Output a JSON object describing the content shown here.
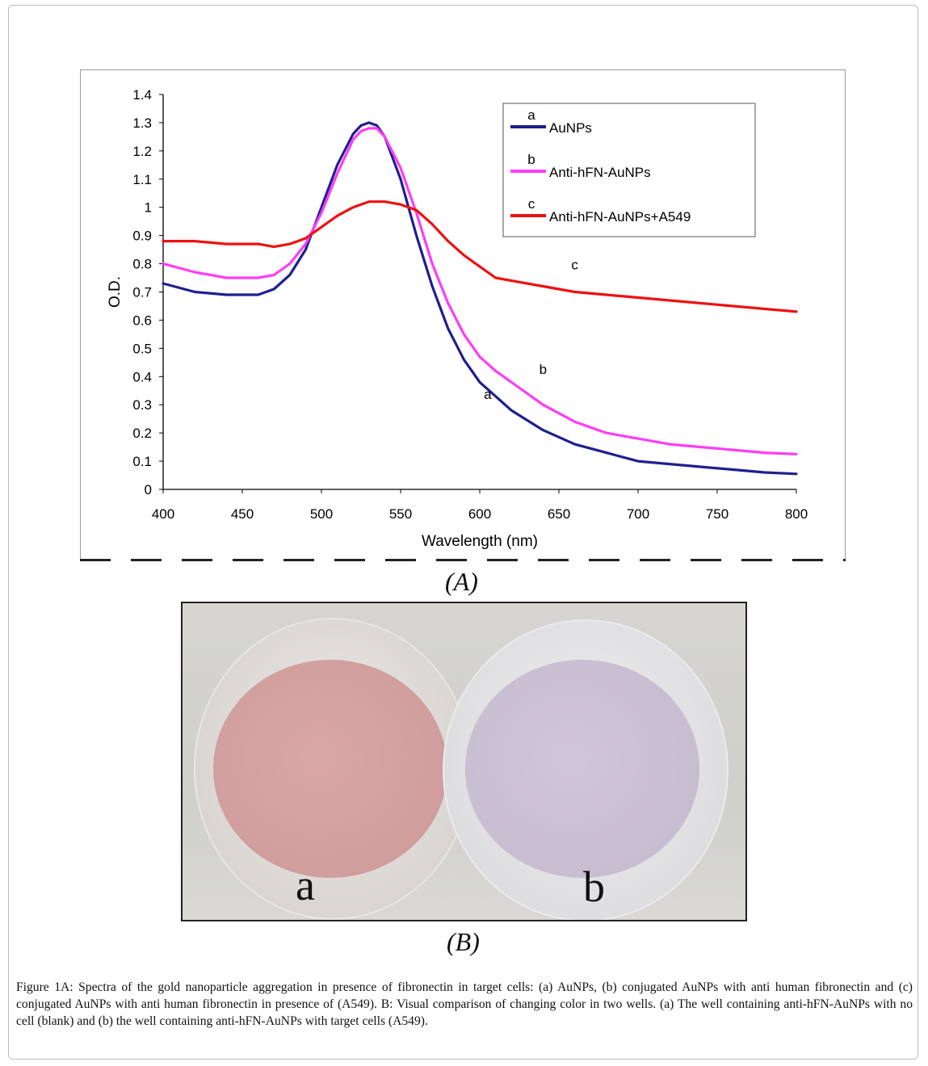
{
  "chart_data": {
    "type": "line",
    "xlabel": "Wavelength (nm)",
    "ylabel": "O.D.",
    "xlim": [
      400,
      800
    ],
    "ylim": [
      0,
      1.4
    ],
    "xticks": [
      "400",
      "450",
      "500",
      "550",
      "600",
      "650",
      "700",
      "750",
      "800"
    ],
    "yticks": [
      "0",
      "0.1",
      "0.2",
      "0.3",
      "0.4",
      "0.5",
      "0.6",
      "0.7",
      "0.8",
      "0.9",
      "1",
      "1.1",
      "1.2",
      "1.3",
      "1.4"
    ],
    "legend_position": "top-right",
    "grid": false,
    "series": [
      {
        "key": "a",
        "name": "AuNPs",
        "color": "#1f1f8f",
        "x": [
          400,
          420,
          440,
          460,
          470,
          480,
          490,
          500,
          510,
          520,
          525,
          530,
          535,
          540,
          550,
          560,
          570,
          580,
          590,
          600,
          610,
          620,
          640,
          660,
          680,
          700,
          720,
          740,
          760,
          780,
          800
        ],
        "y": [
          0.73,
          0.7,
          0.69,
          0.69,
          0.71,
          0.76,
          0.85,
          1.0,
          1.15,
          1.26,
          1.29,
          1.3,
          1.29,
          1.25,
          1.1,
          0.9,
          0.72,
          0.57,
          0.46,
          0.38,
          0.33,
          0.28,
          0.21,
          0.16,
          0.13,
          0.1,
          0.09,
          0.08,
          0.07,
          0.06,
          0.055
        ]
      },
      {
        "key": "b",
        "name": "Anti-hFN-AuNPs",
        "color": "#ff3df5",
        "x": [
          400,
          420,
          440,
          460,
          470,
          480,
          490,
          500,
          510,
          520,
          525,
          530,
          535,
          540,
          550,
          560,
          570,
          580,
          590,
          600,
          610,
          620,
          640,
          660,
          680,
          700,
          720,
          740,
          760,
          780,
          800
        ],
        "y": [
          0.8,
          0.77,
          0.75,
          0.75,
          0.76,
          0.8,
          0.87,
          0.98,
          1.12,
          1.24,
          1.27,
          1.28,
          1.28,
          1.25,
          1.14,
          0.98,
          0.8,
          0.66,
          0.55,
          0.47,
          0.42,
          0.38,
          0.3,
          0.24,
          0.2,
          0.18,
          0.16,
          0.15,
          0.14,
          0.13,
          0.125
        ]
      },
      {
        "key": "c",
        "name": "Anti-hFN-AuNPs+A549",
        "color": "#ee1111",
        "x": [
          400,
          420,
          440,
          460,
          470,
          480,
          490,
          500,
          510,
          520,
          530,
          540,
          550,
          560,
          570,
          580,
          590,
          600,
          610,
          620,
          640,
          660,
          680,
          700,
          720,
          740,
          760,
          780,
          800
        ],
        "y": [
          0.88,
          0.88,
          0.87,
          0.87,
          0.86,
          0.87,
          0.89,
          0.93,
          0.97,
          1.0,
          1.02,
          1.02,
          1.01,
          0.99,
          0.94,
          0.88,
          0.83,
          0.79,
          0.75,
          0.74,
          0.72,
          0.7,
          0.69,
          0.68,
          0.67,
          0.66,
          0.65,
          0.64,
          0.63
        ]
      }
    ],
    "annotations": [
      {
        "text": "c",
        "x": 660,
        "y": 0.78
      },
      {
        "text": "b",
        "x": 640,
        "y": 0.41
      },
      {
        "text": "a",
        "x": 605,
        "y": 0.32
      }
    ]
  },
  "panels": {
    "a_label": "(A)",
    "b_label": "(B)"
  },
  "photo": {
    "well_a_label": "a",
    "well_b_label": "b",
    "well_a_color": "#d8a8a6",
    "well_b_color": "#cfc6d8"
  },
  "caption": "Figure 1A: Spectra of the gold nanoparticle aggregation in presence of fibronectin in target cells: (a) AuNPs, (b) conjugated AuNPs with anti human fibronectin and (c) conjugated AuNPs with anti human fibronectin in presence of (A549). B: Visual comparison of changing color in two wells. (a) The well containing anti-hFN-AuNPs with no cell (blank) and (b) the well containing anti-hFN-AuNPs with target cells (A549)."
}
